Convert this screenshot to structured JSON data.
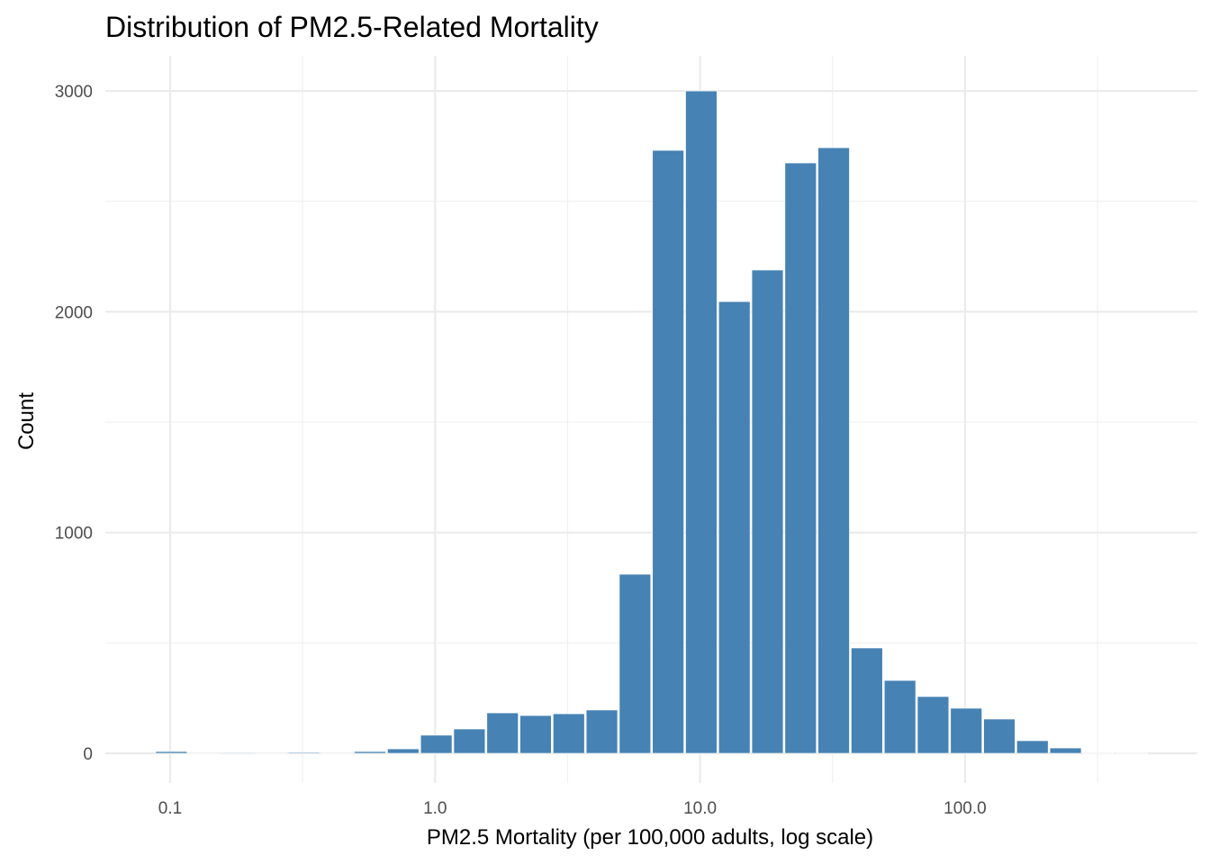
{
  "chart_data": {
    "type": "bar",
    "title": "Distribution of PM2.5-Related Mortality",
    "xlabel": "PM2.5 Mortality (per 100,000 adults, log scale)",
    "ylabel": "Count",
    "x_scale": "log10",
    "bin_log10_start": -1.058,
    "bin_log10_width": 0.125,
    "counts": [
      8,
      0,
      3,
      0,
      4,
      0,
      8,
      20,
      82,
      110,
      183,
      171,
      179,
      196,
      811,
      2731,
      3000,
      2046,
      2189,
      2674,
      2743,
      477,
      330,
      257,
      204,
      155,
      57,
      24,
      1,
      1
    ],
    "xticks": [
      0.1,
      1,
      10,
      100
    ],
    "xtick_labels": [
      "0.1",
      "1.0",
      "10.0",
      "100.0"
    ],
    "yticks": [
      0,
      1000,
      2000,
      3000
    ],
    "ytick_labels": [
      "0",
      "1000",
      "2000",
      "3000"
    ],
    "xlim_log10": [
      -1.25,
      2.78
    ],
    "ylim": [
      -150,
      3150
    ],
    "grid": true,
    "bar_color": "#4682B4"
  }
}
